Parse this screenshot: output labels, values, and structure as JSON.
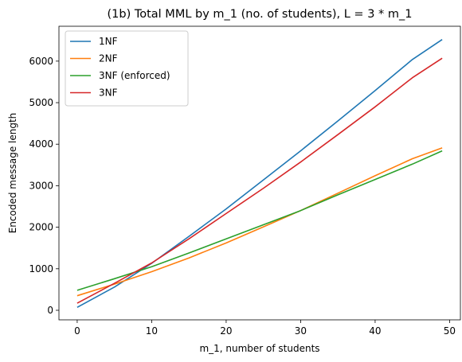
{
  "chart_data": {
    "type": "line",
    "title": "(1b) Total MML by m_1 (no. of students), L = 3 * m_1",
    "xlabel": "m_1, number of students",
    "ylabel": "Encoded message length",
    "xlim": [
      -2.45,
      51.45
    ],
    "ylim": [
      -230,
      6840
    ],
    "xticks": [
      0,
      10,
      20,
      30,
      40,
      50
    ],
    "yticks": [
      0,
      1000,
      2000,
      3000,
      4000,
      5000,
      6000
    ],
    "legend_position": "top-left",
    "grid": false,
    "x": [
      0,
      5,
      10,
      15,
      20,
      25,
      30,
      35,
      40,
      45,
      49
    ],
    "series": [
      {
        "name": "1NF",
        "color": "#1f77b4",
        "values": [
          70,
          560,
          1130,
          1780,
          2440,
          3140,
          3840,
          4560,
          5290,
          6040,
          6520
        ]
      },
      {
        "name": "2NF",
        "color": "#ff7f0e",
        "values": [
          350,
          630,
          930,
          1260,
          1620,
          2010,
          2400,
          2820,
          3240,
          3650,
          3910
        ]
      },
      {
        "name": "3NF (enforced)",
        "color": "#2ca02c",
        "values": [
          480,
          760,
          1050,
          1380,
          1720,
          2060,
          2400,
          2780,
          3150,
          3520,
          3840
        ]
      },
      {
        "name": "3NF",
        "color": "#d62728",
        "values": [
          170,
          650,
          1140,
          1720,
          2330,
          2940,
          3570,
          4230,
          4900,
          5600,
          6070
        ]
      }
    ]
  }
}
